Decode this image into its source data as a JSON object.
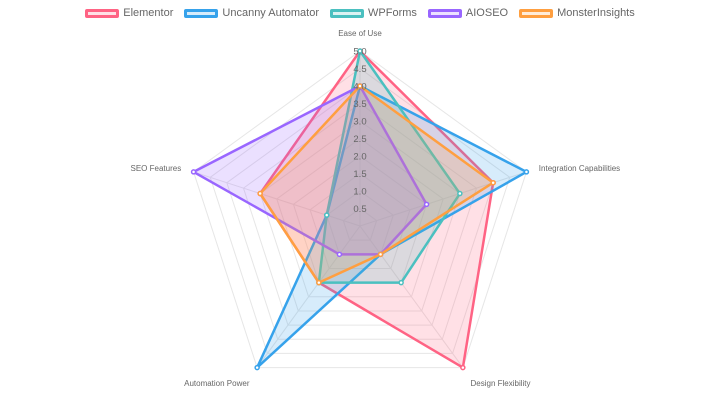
{
  "chart_data": {
    "type": "radar",
    "title": "",
    "axes": [
      "Ease of Use",
      "Integration Capabilities",
      "Design Flexibility",
      "Automation Power",
      "SEO Features"
    ],
    "r_ticks": [
      "0.5",
      "1.0",
      "1.5",
      "2.0",
      "2.5",
      "3.0",
      "3.5",
      "4.0",
      "4.5",
      "5.0"
    ],
    "r_range": [
      0,
      5
    ],
    "grid": true,
    "legend_position": "top",
    "series": [
      {
        "name": "Elementor",
        "color": "#ff6384",
        "fill": "rgba(255,99,132,0.2)",
        "values": [
          5.0,
          4.0,
          5.0,
          2.0,
          3.0
        ]
      },
      {
        "name": "Uncanny Automator",
        "color": "#36a2eb",
        "fill": "rgba(54,162,235,0.2)",
        "values": [
          4.0,
          5.0,
          1.0,
          5.0,
          1.0
        ]
      },
      {
        "name": "WPForms",
        "color": "#4bc0c0",
        "fill": "rgba(75,192,192,0.2)",
        "values": [
          5.0,
          3.0,
          2.0,
          2.0,
          1.0
        ]
      },
      {
        "name": "AIOSEO",
        "color": "#9966ff",
        "fill": "rgba(153,102,255,0.2)",
        "values": [
          4.0,
          2.0,
          1.0,
          1.0,
          5.0
        ]
      },
      {
        "name": "MonsterInsights",
        "color": "#ff9f40",
        "fill": "rgba(255,159,64,0.2)",
        "values": [
          4.0,
          4.0,
          1.0,
          2.0,
          3.0
        ]
      }
    ]
  }
}
